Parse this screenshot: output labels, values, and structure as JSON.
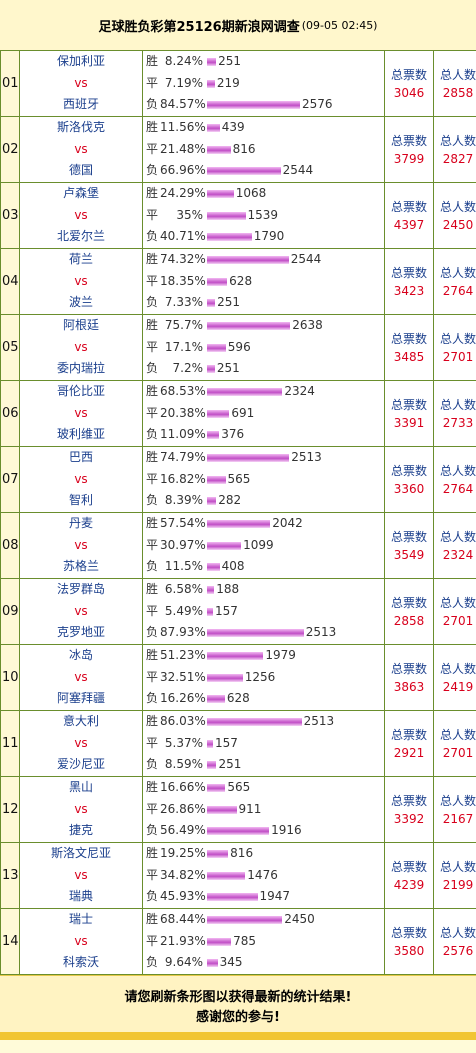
{
  "header": {
    "title": "足球胜负彩第25126期新浪网调查",
    "timestamp": "(09-05 02:45)"
  },
  "labels": {
    "win": "胜",
    "draw": "平",
    "loss": "负",
    "vs": "vs",
    "total_votes": "总票数",
    "total_people": "总人数"
  },
  "colors": {
    "team": "#1a3e8c",
    "vs": "#d8001c",
    "bar": "#c14ec6",
    "border": "#6a8e2d"
  },
  "matches": [
    {
      "no": "01",
      "home": "保加利亚",
      "away": "西班牙",
      "win": {
        "pct": "8.24%",
        "count": "251"
      },
      "draw": {
        "pct": "7.19%",
        "count": "219"
      },
      "loss": {
        "pct": "84.57%",
        "count": "2576"
      },
      "votes": "3046",
      "people": "2858"
    },
    {
      "no": "02",
      "home": "斯洛伐克",
      "away": "德国",
      "win": {
        "pct": "11.56%",
        "count": "439"
      },
      "draw": {
        "pct": "21.48%",
        "count": "816"
      },
      "loss": {
        "pct": "66.96%",
        "count": "2544"
      },
      "votes": "3799",
      "people": "2827"
    },
    {
      "no": "03",
      "home": "卢森堡",
      "away": "北爱尔兰",
      "win": {
        "pct": "24.29%",
        "count": "1068"
      },
      "draw": {
        "pct": "35%",
        "count": "1539"
      },
      "loss": {
        "pct": "40.71%",
        "count": "1790"
      },
      "votes": "4397",
      "people": "2450"
    },
    {
      "no": "04",
      "home": "荷兰",
      "away": "波兰",
      "win": {
        "pct": "74.32%",
        "count": "2544"
      },
      "draw": {
        "pct": "18.35%",
        "count": "628"
      },
      "loss": {
        "pct": "7.33%",
        "count": "251"
      },
      "votes": "3423",
      "people": "2764"
    },
    {
      "no": "05",
      "home": "阿根廷",
      "away": "委内瑞拉",
      "win": {
        "pct": "75.7%",
        "count": "2638"
      },
      "draw": {
        "pct": "17.1%",
        "count": "596"
      },
      "loss": {
        "pct": "7.2%",
        "count": "251"
      },
      "votes": "3485",
      "people": "2701"
    },
    {
      "no": "06",
      "home": "哥伦比亚",
      "away": "玻利维亚",
      "win": {
        "pct": "68.53%",
        "count": "2324"
      },
      "draw": {
        "pct": "20.38%",
        "count": "691"
      },
      "loss": {
        "pct": "11.09%",
        "count": "376"
      },
      "votes": "3391",
      "people": "2733"
    },
    {
      "no": "07",
      "home": "巴西",
      "away": "智利",
      "win": {
        "pct": "74.79%",
        "count": "2513"
      },
      "draw": {
        "pct": "16.82%",
        "count": "565"
      },
      "loss": {
        "pct": "8.39%",
        "count": "282"
      },
      "votes": "3360",
      "people": "2764"
    },
    {
      "no": "08",
      "home": "丹麦",
      "away": "苏格兰",
      "win": {
        "pct": "57.54%",
        "count": "2042"
      },
      "draw": {
        "pct": "30.97%",
        "count": "1099"
      },
      "loss": {
        "pct": "11.5%",
        "count": "408"
      },
      "votes": "3549",
      "people": "2324"
    },
    {
      "no": "09",
      "home": "法罗群岛",
      "away": "克罗地亚",
      "win": {
        "pct": "6.58%",
        "count": "188"
      },
      "draw": {
        "pct": "5.49%",
        "count": "157"
      },
      "loss": {
        "pct": "87.93%",
        "count": "2513"
      },
      "votes": "2858",
      "people": "2701"
    },
    {
      "no": "10",
      "home": "冰岛",
      "away": "阿塞拜疆",
      "win": {
        "pct": "51.23%",
        "count": "1979"
      },
      "draw": {
        "pct": "32.51%",
        "count": "1256"
      },
      "loss": {
        "pct": "16.26%",
        "count": "628"
      },
      "votes": "3863",
      "people": "2419"
    },
    {
      "no": "11",
      "home": "意大利",
      "away": "爱沙尼亚",
      "win": {
        "pct": "86.03%",
        "count": "2513"
      },
      "draw": {
        "pct": "5.37%",
        "count": "157"
      },
      "loss": {
        "pct": "8.59%",
        "count": "251"
      },
      "votes": "2921",
      "people": "2701"
    },
    {
      "no": "12",
      "home": "黑山",
      "away": "捷克",
      "win": {
        "pct": "16.66%",
        "count": "565"
      },
      "draw": {
        "pct": "26.86%",
        "count": "911"
      },
      "loss": {
        "pct": "56.49%",
        "count": "1916"
      },
      "votes": "3392",
      "people": "2167"
    },
    {
      "no": "13",
      "home": "斯洛文尼亚",
      "away": "瑞典",
      "win": {
        "pct": "19.25%",
        "count": "816"
      },
      "draw": {
        "pct": "34.82%",
        "count": "1476"
      },
      "loss": {
        "pct": "45.93%",
        "count": "1947"
      },
      "votes": "4239",
      "people": "2199"
    },
    {
      "no": "14",
      "home": "瑞士",
      "away": "科索沃",
      "win": {
        "pct": "68.44%",
        "count": "2450"
      },
      "draw": {
        "pct": "21.93%",
        "count": "785"
      },
      "loss": {
        "pct": "9.64%",
        "count": "345"
      },
      "votes": "3580",
      "people": "2576"
    }
  ],
  "footer": {
    "line1": "请您刷新条形图以获得最新的统计结果!",
    "line2": "感谢您的参与!"
  }
}
